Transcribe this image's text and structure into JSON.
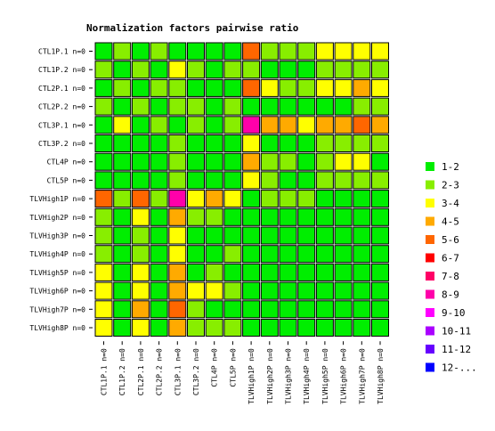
{
  "chart_data": {
    "type": "heatmap",
    "title": "Normalization factors pairwise ratio",
    "xlabel": "",
    "ylabel": "",
    "row_labels": [
      "CTL1P.1 n=0",
      "CTL1P.2 n=0",
      "CTL2P.1 n=0",
      "CTL2P.2 n=0",
      "CTL3P.1 n=0",
      "CTL3P.2 n=0",
      "CTL4P n=0",
      "CTL5P n=0",
      "TLVHigh1P n=0",
      "TLVHigh2P n=0",
      "TLVHigh3P n=0",
      "TLVHigh4P n=0",
      "TLVHigh5P n=0",
      "TLVHigh6P n=0",
      "TLVHigh7P n=0",
      "TLVHigh8P n=0"
    ],
    "col_labels": [
      "CTL1P.1 n=0",
      "CTL1P.2 n=0",
      "CTL2P.1 n=0",
      "CTL2P.2 n=0",
      "CTL3P.1 n=0",
      "CTL3P.2 n=0",
      "CTL4P n=0",
      "CTL5P n=0",
      "TLVHigh1P n=0",
      "TLVHigh2P n=0",
      "TLVHigh3P n=0",
      "TLVHigh4P n=0",
      "TLVHigh5P n=0",
      "TLVHigh6P n=0",
      "TLVHigh7P n=0",
      "TLVHigh8P n=0"
    ],
    "legend_position": "right",
    "legend": [
      {
        "label": "1-2",
        "color": "#00ee00"
      },
      {
        "label": "2-3",
        "color": "#88ee00"
      },
      {
        "label": "3-4",
        "color": "#ffff00"
      },
      {
        "label": "4-5",
        "color": "#ffaa00"
      },
      {
        "label": "5-6",
        "color": "#ff6600"
      },
      {
        "label": "6-7",
        "color": "#ff0000"
      },
      {
        "label": "7-8",
        "color": "#ff0066"
      },
      {
        "label": "8-9",
        "color": "#ff00aa"
      },
      {
        "label": "9-10",
        "color": "#ff00ff"
      },
      {
        "label": "10-11",
        "color": "#aa00ff"
      },
      {
        "label": "11-12",
        "color": "#6600ff"
      },
      {
        "label": "12-...",
        "color": "#0000ff"
      }
    ],
    "bins": [
      [
        0,
        1,
        0,
        1,
        0,
        0,
        0,
        0,
        4,
        1,
        1,
        1,
        2,
        2,
        2,
        2
      ],
      [
        1,
        0,
        1,
        0,
        2,
        1,
        0,
        1,
        1,
        0,
        0,
        0,
        1,
        1,
        1,
        1
      ],
      [
        0,
        1,
        0,
        1,
        1,
        0,
        0,
        0,
        4,
        2,
        1,
        1,
        2,
        2,
        3,
        2
      ],
      [
        1,
        0,
        1,
        0,
        1,
        1,
        0,
        1,
        0,
        0,
        0,
        0,
        0,
        0,
        1,
        1
      ],
      [
        0,
        2,
        0,
        1,
        0,
        1,
        0,
        1,
        7,
        3,
        3,
        2,
        3,
        3,
        4,
        3
      ],
      [
        0,
        0,
        0,
        0,
        1,
        0,
        0,
        0,
        2,
        0,
        0,
        0,
        1,
        1,
        1,
        1
      ],
      [
        0,
        0,
        0,
        0,
        1,
        0,
        0,
        0,
        3,
        1,
        1,
        0,
        1,
        2,
        2,
        0
      ],
      [
        0,
        0,
        0,
        0,
        1,
        0,
        0,
        0,
        2,
        1,
        0,
        0,
        1,
        1,
        1,
        1
      ],
      [
        4,
        1,
        4,
        1,
        7,
        2,
        3,
        2,
        0,
        1,
        1,
        1,
        0,
        0,
        0,
        0
      ],
      [
        1,
        0,
        2,
        0,
        3,
        1,
        1,
        0,
        0,
        0,
        0,
        0,
        0,
        0,
        0,
        0
      ],
      [
        1,
        0,
        1,
        0,
        2,
        0,
        0,
        0,
        0,
        0,
        0,
        0,
        0,
        0,
        0,
        0
      ],
      [
        1,
        0,
        1,
        0,
        2,
        0,
        0,
        1,
        0,
        0,
        0,
        0,
        0,
        0,
        0,
        0
      ],
      [
        2,
        0,
        2,
        0,
        3,
        0,
        1,
        0,
        0,
        0,
        0,
        0,
        0,
        0,
        0,
        0
      ],
      [
        2,
        0,
        2,
        0,
        3,
        2,
        2,
        1,
        0,
        0,
        0,
        0,
        0,
        0,
        0,
        0
      ],
      [
        2,
        0,
        3,
        0,
        4,
        1,
        0,
        0,
        0,
        0,
        0,
        0,
        0,
        0,
        0,
        0
      ],
      [
        2,
        0,
        2,
        0,
        3,
        1,
        1,
        1,
        0,
        0,
        0,
        0,
        0,
        0,
        0,
        0
      ]
    ]
  }
}
